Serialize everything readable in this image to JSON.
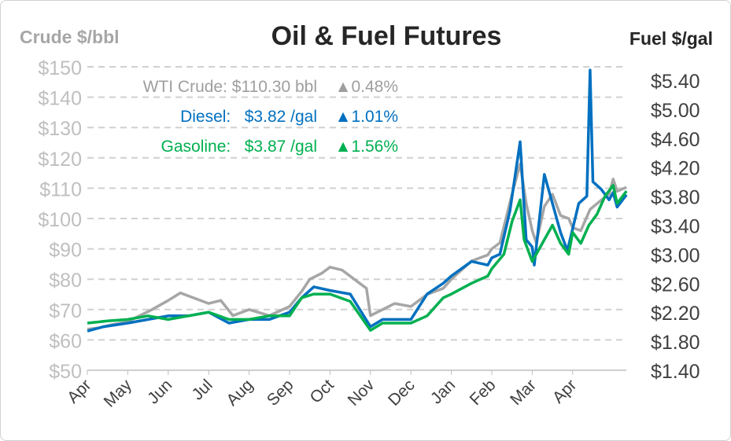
{
  "chart_data": {
    "type": "line",
    "title": "Oil & Fuel Futures",
    "ylabel_left": "Crude $/bbl",
    "ylabel_right": "Fuel $/gal",
    "ylim_left": [
      50,
      150
    ],
    "ylim_right": [
      1.4,
      5.6
    ],
    "left_ticks": [
      "$50",
      "$60",
      "$70",
      "$80",
      "$90",
      "$100",
      "$110",
      "$120",
      "$130",
      "$140",
      "$150"
    ],
    "right_ticks": [
      "$1.40",
      "$1.80",
      "$2.20",
      "$2.60",
      "$3.00",
      "$3.40",
      "$3.80",
      "$4.20",
      "$4.60",
      "$5.00",
      "$5.40"
    ],
    "x_ticks": [
      "Apr",
      "May",
      "Jun",
      "Jul",
      "Aug",
      "Sep",
      "Oct",
      "Nov",
      "Dec",
      "Jan",
      "Feb",
      "Mar",
      "Apr"
    ],
    "x_unit": "months since first Apr",
    "xlim": [
      0,
      13.33
    ],
    "grid": true,
    "legend": [
      {
        "label": "WTI Crude: $110.30 bbl",
        "change": "▲0.48%",
        "color": "#9e9e9e"
      },
      {
        "label": "Diesel:   $3.82 /gal",
        "change": "▲1.01%",
        "color": "#0070c0"
      },
      {
        "label": "Gasoline:   $3.87 /gal",
        "change": "▲1.56%",
        "color": "#00b050"
      }
    ],
    "series": [
      {
        "name": "WTI Crude",
        "axis": "left",
        "color": "#a6a6a6",
        "points": [
          [
            0,
            63.5
          ],
          [
            0.3,
            64
          ],
          [
            0.6,
            65
          ],
          [
            1,
            66
          ],
          [
            1.3,
            68
          ],
          [
            1.6,
            70
          ],
          [
            2,
            73
          ],
          [
            2.3,
            75.5
          ],
          [
            2.6,
            74
          ],
          [
            3,
            72
          ],
          [
            3.3,
            73
          ],
          [
            3.6,
            68
          ],
          [
            4,
            70
          ],
          [
            4.5,
            68
          ],
          [
            5,
            71
          ],
          [
            5.3,
            76
          ],
          [
            5.5,
            80
          ],
          [
            5.8,
            82
          ],
          [
            6,
            84
          ],
          [
            6.3,
            83
          ],
          [
            6.6,
            80
          ],
          [
            6.9,
            77
          ],
          [
            7,
            68
          ],
          [
            7.3,
            70
          ],
          [
            7.6,
            72
          ],
          [
            8,
            71
          ],
          [
            8.4,
            75
          ],
          [
            8.8,
            77
          ],
          [
            9,
            80
          ],
          [
            9.5,
            86
          ],
          [
            9.9,
            88
          ],
          [
            10,
            90
          ],
          [
            10.2,
            92
          ],
          [
            10.5,
            108
          ],
          [
            10.7,
            118
          ],
          [
            10.85,
            105
          ],
          [
            11,
            96
          ],
          [
            11.1,
            92
          ],
          [
            11.3,
            104
          ],
          [
            11.5,
            108
          ],
          [
            11.7,
            101
          ],
          [
            11.9,
            100
          ],
          [
            12,
            97
          ],
          [
            12.2,
            96
          ],
          [
            12.43,
            103
          ],
          [
            12.7,
            106
          ],
          [
            12.9,
            108
          ],
          [
            13,
            113
          ],
          [
            13.1,
            109
          ],
          [
            13.33,
            110.3
          ]
        ]
      },
      {
        "name": "Diesel",
        "axis": "right",
        "color": "#0070c0",
        "points": [
          [
            0,
            1.94
          ],
          [
            0.4,
            2.0
          ],
          [
            1,
            2.05
          ],
          [
            1.5,
            2.1
          ],
          [
            2,
            2.15
          ],
          [
            2.5,
            2.15
          ],
          [
            3,
            2.2
          ],
          [
            3.5,
            2.05
          ],
          [
            4,
            2.1
          ],
          [
            4.5,
            2.1
          ],
          [
            5,
            2.2
          ],
          [
            5.3,
            2.4
          ],
          [
            5.6,
            2.55
          ],
          [
            6,
            2.5
          ],
          [
            6.5,
            2.45
          ],
          [
            7,
            2.0
          ],
          [
            7.3,
            2.1
          ],
          [
            8,
            2.1
          ],
          [
            8.4,
            2.45
          ],
          [
            8.8,
            2.6
          ],
          [
            9,
            2.7
          ],
          [
            9.5,
            2.9
          ],
          [
            9.9,
            2.85
          ],
          [
            10,
            2.95
          ],
          [
            10.2,
            3.0
          ],
          [
            10.45,
            3.6
          ],
          [
            10.7,
            4.55
          ],
          [
            10.85,
            3.2
          ],
          [
            11,
            3.1
          ],
          [
            11.05,
            2.85
          ],
          [
            11.3,
            4.1
          ],
          [
            11.5,
            3.7
          ],
          [
            11.7,
            3.3
          ],
          [
            11.87,
            3.05
          ],
          [
            12.15,
            3.7
          ],
          [
            12.35,
            3.8
          ],
          [
            12.43,
            5.54
          ],
          [
            12.5,
            4.0
          ],
          [
            12.7,
            3.9
          ],
          [
            12.9,
            3.75
          ],
          [
            13,
            3.85
          ],
          [
            13.1,
            3.65
          ],
          [
            13.33,
            3.82
          ]
        ]
      },
      {
        "name": "Gasoline",
        "axis": "right",
        "color": "#00b050",
        "points": [
          [
            0,
            2.05
          ],
          [
            0.5,
            2.08
          ],
          [
            1,
            2.1
          ],
          [
            1.5,
            2.15
          ],
          [
            2,
            2.1
          ],
          [
            2.5,
            2.15
          ],
          [
            3,
            2.2
          ],
          [
            3.5,
            2.1
          ],
          [
            4,
            2.1
          ],
          [
            4.5,
            2.15
          ],
          [
            5,
            2.15
          ],
          [
            5.3,
            2.4
          ],
          [
            5.6,
            2.45
          ],
          [
            6,
            2.45
          ],
          [
            6.5,
            2.35
          ],
          [
            7,
            1.95
          ],
          [
            7.3,
            2.05
          ],
          [
            8,
            2.05
          ],
          [
            8.4,
            2.15
          ],
          [
            8.8,
            2.4
          ],
          [
            9,
            2.45
          ],
          [
            9.5,
            2.6
          ],
          [
            9.9,
            2.7
          ],
          [
            10,
            2.8
          ],
          [
            10.3,
            3.0
          ],
          [
            10.5,
            3.45
          ],
          [
            10.7,
            3.75
          ],
          [
            10.8,
            3.2
          ],
          [
            11,
            2.9
          ],
          [
            11.3,
            3.2
          ],
          [
            11.5,
            3.4
          ],
          [
            11.7,
            3.15
          ],
          [
            11.9,
            3.0
          ],
          [
            12,
            3.3
          ],
          [
            12.2,
            3.15
          ],
          [
            12.4,
            3.4
          ],
          [
            12.6,
            3.55
          ],
          [
            12.8,
            3.8
          ],
          [
            13,
            3.95
          ],
          [
            13.1,
            3.7
          ],
          [
            13.33,
            3.87
          ]
        ]
      }
    ]
  }
}
